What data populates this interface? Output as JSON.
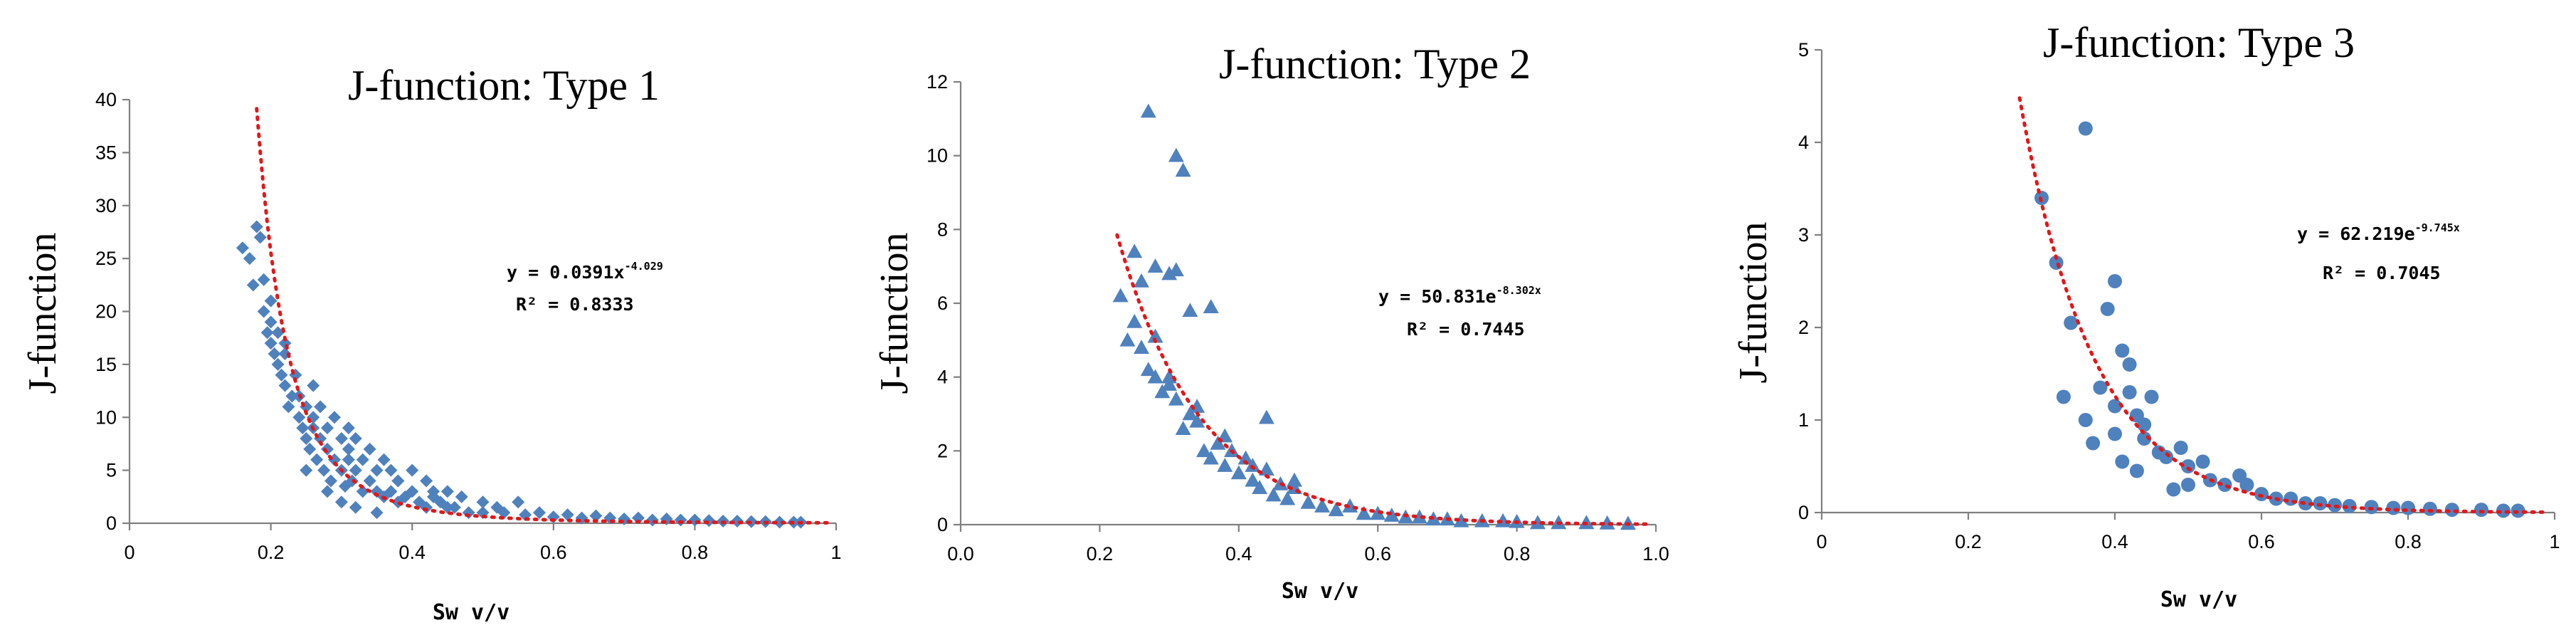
{
  "colors": {
    "marker": "#4f81bd",
    "trendline": "#e0181b",
    "axis": "#7f7f7f"
  },
  "chart_data": [
    {
      "type": "scatter",
      "marker": "diamond",
      "title": "J-function: Type 1",
      "xlabel": "Sw  v/v",
      "ylabel": "J-function",
      "xlim": [
        0,
        1
      ],
      "ylim": [
        0,
        40
      ],
      "xticks": [
        0,
        0.2,
        0.4,
        0.6,
        0.8,
        1
      ],
      "xtick_labels": [
        "0",
        "0.2",
        "0.4",
        "0.6",
        "0.8",
        "1"
      ],
      "yticks": [
        0,
        5,
        10,
        15,
        20,
        25,
        30,
        35,
        40
      ],
      "ytick_labels": [
        "0",
        "5",
        "10",
        "15",
        "20",
        "25",
        "30",
        "35",
        "40"
      ],
      "trendline": {
        "model": "power",
        "a": 0.0391,
        "b": -4.029,
        "x_range": [
          0.18,
          0.99
        ]
      },
      "equation": {
        "lhs": "y = 0.0391x",
        "exp": "-4.029",
        "r2": "R² = 0.8333"
      },
      "x": [
        0.16,
        0.17,
        0.175,
        0.18,
        0.185,
        0.19,
        0.19,
        0.195,
        0.2,
        0.2,
        0.205,
        0.21,
        0.21,
        0.215,
        0.22,
        0.22,
        0.225,
        0.23,
        0.235,
        0.24,
        0.24,
        0.245,
        0.25,
        0.25,
        0.255,
        0.26,
        0.26,
        0.265,
        0.27,
        0.27,
        0.275,
        0.28,
        0.28,
        0.285,
        0.29,
        0.29,
        0.3,
        0.3,
        0.305,
        0.31,
        0.31,
        0.315,
        0.32,
        0.32,
        0.33,
        0.33,
        0.34,
        0.34,
        0.35,
        0.35,
        0.36,
        0.36,
        0.37,
        0.37,
        0.38,
        0.38,
        0.39,
        0.4,
        0.4,
        0.41,
        0.42,
        0.42,
        0.43,
        0.44,
        0.45,
        0.46,
        0.47,
        0.48,
        0.5,
        0.5,
        0.52,
        0.53,
        0.55,
        0.56,
        0.58,
        0.6,
        0.62,
        0.64,
        0.66,
        0.68,
        0.7,
        0.72,
        0.74,
        0.76,
        0.78,
        0.8,
        0.82,
        0.84,
        0.86,
        0.88,
        0.9,
        0.92,
        0.94,
        0.95,
        0.28,
        0.3,
        0.32,
        0.25,
        0.35,
        0.45,
        0.2,
        0.22,
        0.26,
        0.31,
        0.38,
        0.43
      ],
      "y": [
        26,
        25,
        22.5,
        28,
        27,
        20,
        23,
        18,
        17,
        19,
        16,
        15,
        18,
        14,
        13,
        16,
        11,
        12,
        14,
        10,
        12,
        9,
        8,
        11,
        7,
        9,
        10,
        6,
        8,
        11,
        5,
        7,
        9,
        4,
        6,
        10,
        5,
        8,
        3.5,
        6,
        9,
        4,
        5,
        8,
        3,
        6,
        4,
        7,
        3,
        5,
        2.5,
        6,
        3,
        5,
        2,
        4,
        2.5,
        3,
        5,
        2,
        1.5,
        4,
        2.5,
        2,
        3,
        1.5,
        2.5,
        1,
        2,
        1,
        1.5,
        1,
        2,
        0.8,
        1,
        0.6,
        0.8,
        0.5,
        0.7,
        0.5,
        0.4,
        0.5,
        0.3,
        0.4,
        0.3,
        0.3,
        0.25,
        0.2,
        0.2,
        0.15,
        0.15,
        0.1,
        0.1,
        0.1,
        3,
        2,
        1.5,
        5,
        1,
        1.5,
        21,
        17,
        13,
        7,
        4,
        3
      ]
    },
    {
      "type": "scatter",
      "marker": "triangle",
      "title": "J-function: Type 2",
      "xlabel": "Sw    v/v",
      "ylabel": "J-function",
      "xlim": [
        0,
        1
      ],
      "ylim": [
        0,
        12
      ],
      "xticks": [
        0,
        0.2,
        0.4,
        0.6,
        0.8,
        1
      ],
      "xtick_labels": [
        "0.0",
        "0.2",
        "0.4",
        "0.6",
        "0.8",
        "1.0"
      ],
      "yticks": [
        0,
        2,
        4,
        6,
        8,
        10,
        12
      ],
      "ytick_labels": [
        "0",
        "2",
        "4",
        "6",
        "8",
        "10",
        "12"
      ],
      "trendline": {
        "model": "exponential",
        "a": 50.831,
        "b": -8.302,
        "x_range": [
          0.225,
          0.99
        ]
      },
      "equation": {
        "lhs": "y = 50.831e",
        "exp": "-8.302x",
        "r2": "R² = 0.7445"
      },
      "x": [
        0.27,
        0.31,
        0.32,
        0.25,
        0.26,
        0.28,
        0.3,
        0.31,
        0.33,
        0.36,
        0.23,
        0.24,
        0.25,
        0.26,
        0.27,
        0.28,
        0.29,
        0.3,
        0.31,
        0.32,
        0.33,
        0.34,
        0.35,
        0.36,
        0.37,
        0.38,
        0.39,
        0.4,
        0.41,
        0.42,
        0.43,
        0.44,
        0.45,
        0.46,
        0.47,
        0.48,
        0.5,
        0.52,
        0.54,
        0.56,
        0.58,
        0.6,
        0.62,
        0.64,
        0.66,
        0.68,
        0.7,
        0.72,
        0.75,
        0.78,
        0.8,
        0.83,
        0.86,
        0.9,
        0.93,
        0.96,
        0.28,
        0.3,
        0.34,
        0.38,
        0.42,
        0.44,
        0.48
      ],
      "y": [
        11.2,
        10,
        9.6,
        7.4,
        6.6,
        7,
        6.8,
        6.9,
        5.8,
        5.9,
        6.2,
        5,
        5.5,
        4.8,
        4.2,
        4,
        3.6,
        3.8,
        3.4,
        2.6,
        3,
        2.8,
        2,
        1.8,
        2.2,
        1.6,
        2,
        1.4,
        1.8,
        1.2,
        1,
        1.5,
        0.8,
        1.1,
        0.7,
        1,
        0.6,
        0.5,
        0.4,
        0.5,
        0.3,
        0.3,
        0.25,
        0.2,
        0.2,
        0.15,
        0.15,
        0.1,
        0.1,
        0.1,
        0.08,
        0.05,
        0.05,
        0.05,
        0.04,
        0.03,
        5.1,
        4,
        3.2,
        2.4,
        1.6,
        2.9,
        1.2
      ]
    },
    {
      "type": "scatter",
      "marker": "circle",
      "title": "J-function: Type 3",
      "xlabel": "Sw  v/v",
      "ylabel": "J-function",
      "xlim": [
        0,
        1
      ],
      "ylim": [
        0,
        5
      ],
      "xticks": [
        0,
        0.2,
        0.4,
        0.6,
        0.8,
        1
      ],
      "xtick_labels": [
        "0",
        "0.2",
        "0.4",
        "0.6",
        "0.8",
        "1"
      ],
      "yticks": [
        0,
        1,
        2,
        3,
        4,
        5
      ],
      "ytick_labels": [
        "0",
        "1",
        "2",
        "3",
        "4",
        "5"
      ],
      "trendline": {
        "model": "exponential",
        "a": 62.219,
        "b": -9.745,
        "x_range": [
          0.27,
          0.99
        ]
      },
      "equation": {
        "lhs": "y = 62.219e",
        "exp": "-9.745x",
        "r2": "R² = 0.7045"
      },
      "x": [
        0.3,
        0.32,
        0.33,
        0.34,
        0.36,
        0.37,
        0.38,
        0.39,
        0.4,
        0.4,
        0.41,
        0.41,
        0.42,
        0.42,
        0.43,
        0.43,
        0.44,
        0.45,
        0.46,
        0.47,
        0.48,
        0.49,
        0.5,
        0.52,
        0.53,
        0.55,
        0.57,
        0.58,
        0.6,
        0.62,
        0.64,
        0.66,
        0.68,
        0.7,
        0.72,
        0.75,
        0.78,
        0.8,
        0.83,
        0.86,
        0.9,
        0.93,
        0.95,
        0.36,
        0.4,
        0.44,
        0.5
      ],
      "y": [
        3.4,
        2.7,
        1.25,
        2.05,
        4.15,
        0.75,
        1.35,
        2.2,
        2.5,
        1.15,
        1.75,
        0.55,
        1.6,
        1.3,
        1.05,
        0.45,
        0.8,
        1.25,
        0.65,
        0.6,
        0.25,
        0.7,
        0.5,
        0.55,
        0.35,
        0.3,
        0.4,
        0.3,
        0.2,
        0.15,
        0.15,
        0.1,
        0.1,
        0.08,
        0.07,
        0.06,
        0.05,
        0.05,
        0.04,
        0.03,
        0.03,
        0.02,
        0.02,
        1,
        0.85,
        0.95,
        0.3
      ]
    }
  ]
}
